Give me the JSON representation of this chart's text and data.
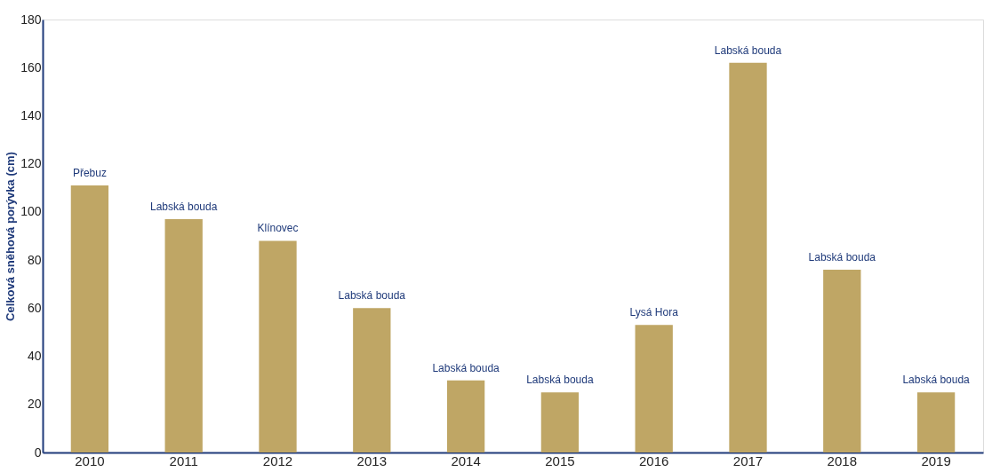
{
  "chart_data": {
    "type": "bar",
    "ylabel": "Celková sněhová porývka (cm)",
    "categories": [
      "2010",
      "2011",
      "2012",
      "2013",
      "2014",
      "2015",
      "2016",
      "2017",
      "2018",
      "2019"
    ],
    "values": [
      111,
      97,
      88,
      60,
      30,
      25,
      53,
      162,
      76,
      25
    ],
    "color": "#bfa665",
    "ylim": [
      0,
      180
    ],
    "yticks": [
      0,
      20,
      40,
      60,
      80,
      100,
      120,
      140,
      160,
      180
    ],
    "grid": false,
    "annotations": [
      {
        "text": "Přebuz",
        "x": "2010",
        "y": 111
      },
      {
        "text": "Labská bouda",
        "x": "2011",
        "y": 97
      },
      {
        "text": "Klínovec",
        "x": "2012",
        "y": 88
      },
      {
        "text": "Labská bouda",
        "x": "2013",
        "y": 60
      },
      {
        "text": "Labská bouda",
        "x": "2014",
        "y": 30
      },
      {
        "text": "Labská bouda",
        "x": "2015",
        "y": 25
      },
      {
        "text": "Lysá Hora",
        "x": "2016",
        "y": 53
      },
      {
        "text": "Labská bouda",
        "x": "2017",
        "y": 162
      },
      {
        "text": "Labská bouda",
        "x": "2018",
        "y": 76
      },
      {
        "text": "Labská bouda",
        "x": "2019",
        "y": 25
      }
    ]
  }
}
